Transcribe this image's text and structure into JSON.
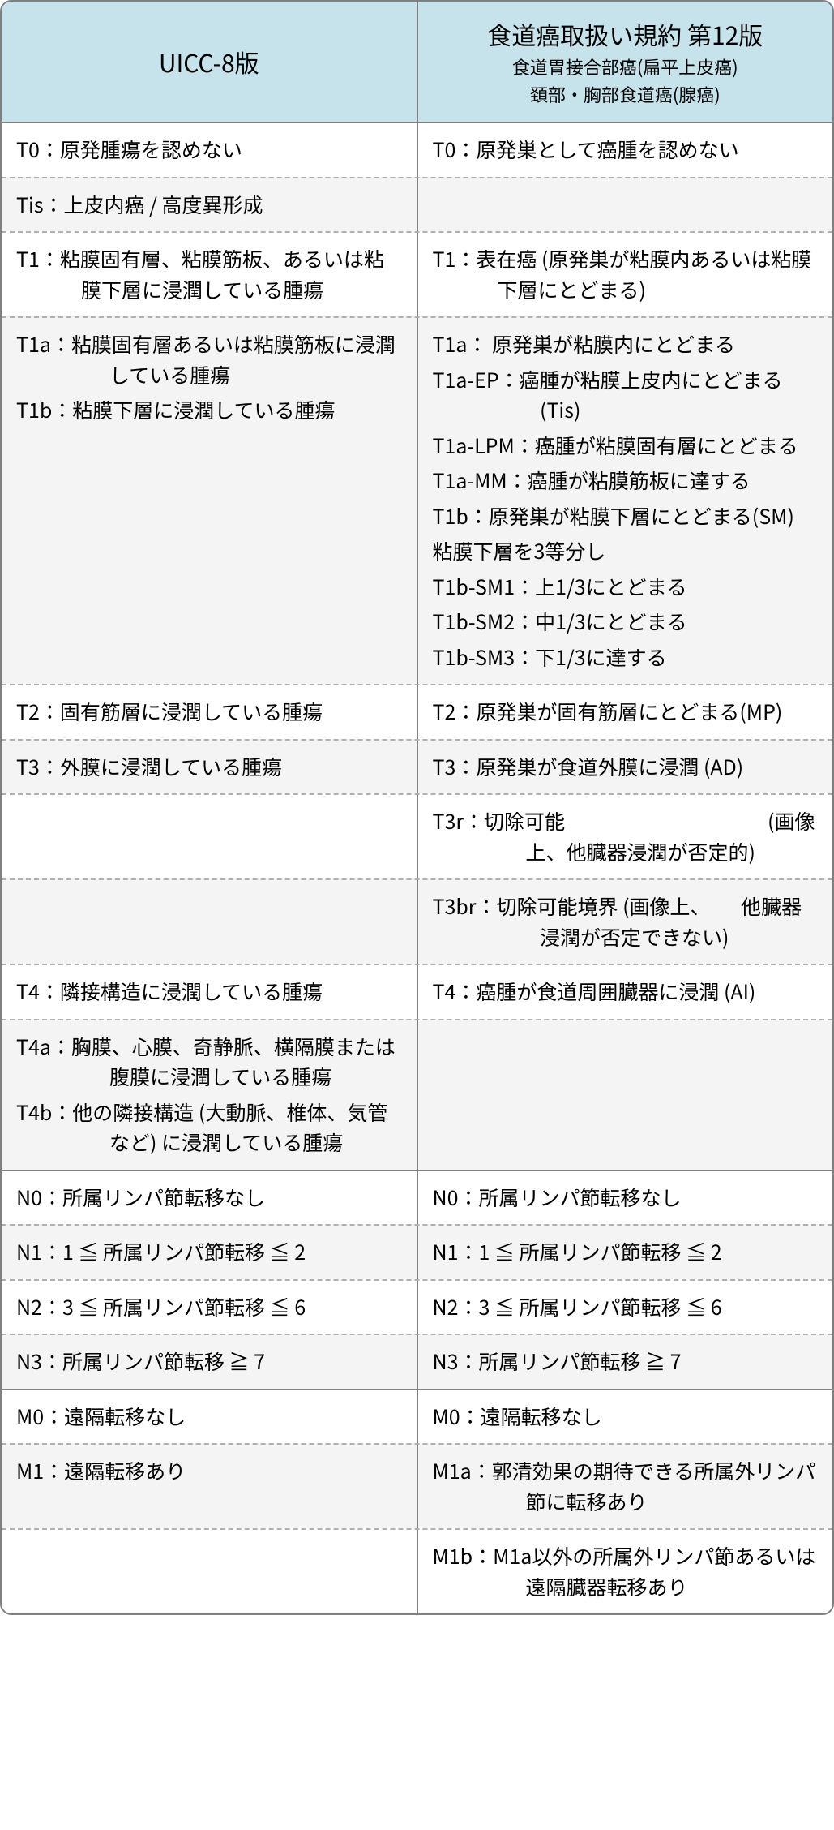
{
  "colors": {
    "header_bg": "#c6e3ec",
    "border": "#808080",
    "dash_border": "#b0b0b0",
    "alt_bg": "#f4f4f4",
    "bg": "#ffffff",
    "text": "#000000"
  },
  "fonts": {
    "header_title_pt": 30,
    "header_sub_pt": 22,
    "cell_pt": 25
  },
  "header": {
    "left": {
      "title": "UICC-8版"
    },
    "right": {
      "title": "食道癌取扱い規約 第12版",
      "sub1": "食道胃接合部癌(扁平上皮癌)",
      "sub2": "頚部・胸部食道癌(腺癌)"
    }
  },
  "sections": [
    {
      "rows": [
        {
          "alt": false,
          "left": [
            {
              "t": "T0：原発腫瘍を認めない",
              "cls": "hang"
            }
          ],
          "right": [
            {
              "t": "T0：原発巣として癌腫を認めない",
              "cls": "hang"
            }
          ]
        },
        {
          "alt": true,
          "left": [
            {
              "t": "Tis：上皮内癌 / 高度異形成",
              "cls": "hang"
            }
          ],
          "right": []
        },
        {
          "alt": false,
          "left": [
            {
              "t": "T1：粘膜固有層、粘膜筋板、あるいは粘膜下層に浸潤している腫瘍",
              "cls": "hang"
            }
          ],
          "right": [
            {
              "t": "T1：表在癌 (原発巣が粘膜内あるいは粘膜下層にとどまる)",
              "cls": "hang"
            }
          ]
        },
        {
          "alt": true,
          "left": [
            {
              "t": "T1a：粘膜固有層あるいは粘膜筋板に浸潤している腫瘍",
              "cls": "hang-s"
            },
            {
              "t": "T1b：粘膜下層に浸潤している腫瘍",
              "cls": "hang-s"
            }
          ],
          "right": [
            {
              "t": "T1a： 原発巣が粘膜内にとどまる",
              "cls": "hang-s"
            },
            {
              "t": "T1a-EP：癌腫が粘膜上皮内にとどまる(Tis)",
              "cls": "hang-m"
            },
            {
              "t": "T1a-LPM：癌腫が粘膜固有層にとどまる",
              "cls": "hang-l"
            },
            {
              "t": "T1a-MM：癌腫が粘膜筋板に達する",
              "cls": "hang-l"
            },
            {
              "t": "T1b：原発巣が粘膜下層にとどまる(SM)",
              "cls": "hang-s"
            },
            {
              "t": "粘膜下層を3等分し",
              "cls": "hang"
            },
            {
              "t": "T1b-SM1：上1/3にとどまる",
              "cls": "hang-l"
            },
            {
              "t": "T1b-SM2：中1/3にとどまる",
              "cls": "hang-l"
            },
            {
              "t": "T1b-SM3：下1/3に達する",
              "cls": "hang-l"
            }
          ]
        },
        {
          "alt": false,
          "left": [
            {
              "t": "T2：固有筋層に浸潤している腫瘍",
              "cls": "hang"
            }
          ],
          "right": [
            {
              "t": "T2：原発巣が固有筋層にとどまる(MP)",
              "cls": "hang"
            }
          ]
        },
        {
          "alt": true,
          "left": [
            {
              "t": "T3：外膜に浸潤している腫瘍",
              "cls": "hang"
            }
          ],
          "right": [
            {
              "t": "T3：原発巣が食道外膜に浸潤 (AD)",
              "cls": "hang"
            }
          ]
        },
        {
          "alt": false,
          "left": [],
          "right": [
            {
              "t": "T3r：切除可能　　　　　　　　　　(画像上、他臓器浸潤が否定的)",
              "cls": "hang-s"
            }
          ]
        },
        {
          "alt": true,
          "left": [],
          "right": [
            {
              "t": "T3br：切除可能境界 (画像上、　　他臓器浸潤が否定できない)",
              "cls": "hang-m"
            }
          ]
        },
        {
          "alt": false,
          "left": [
            {
              "t": "T4：隣接構造に浸潤している腫瘍",
              "cls": "hang"
            }
          ],
          "right": [
            {
              "t": "T4：癌腫が食道周囲臓器に浸潤 (AI)",
              "cls": "hang"
            }
          ]
        },
        {
          "alt": true,
          "left": [
            {
              "t": "T4a：胸膜、心膜、奇静脈、横隔膜または腹膜に浸潤している腫瘍",
              "cls": "hang-s"
            },
            {
              "t": "T4b：他の隣接構造 (大動脈、椎体、気管など) に浸潤している腫瘍",
              "cls": "hang-s"
            }
          ],
          "right": []
        }
      ]
    },
    {
      "rows": [
        {
          "alt": false,
          "left": [
            {
              "t": "N0：所属リンパ節転移なし",
              "cls": "hang"
            }
          ],
          "right": [
            {
              "t": "N0：所属リンパ節転移なし",
              "cls": "hang"
            }
          ]
        },
        {
          "alt": true,
          "left": [
            {
              "t": "N1：1 ≦ 所属リンパ節転移 ≦ 2",
              "cls": "hang"
            }
          ],
          "right": [
            {
              "t": "N1：1 ≦ 所属リンパ節転移 ≦ 2",
              "cls": "hang"
            }
          ]
        },
        {
          "alt": false,
          "left": [
            {
              "t": "N2：3 ≦ 所属リンパ節転移 ≦ 6",
              "cls": "hang"
            }
          ],
          "right": [
            {
              "t": "N2：3 ≦ 所属リンパ節転移 ≦ 6",
              "cls": "hang"
            }
          ]
        },
        {
          "alt": true,
          "left": [
            {
              "t": "N3：所属リンパ節転移 ≧ 7",
              "cls": "hang"
            }
          ],
          "right": [
            {
              "t": "N3：所属リンパ節転移 ≧ 7",
              "cls": "hang"
            }
          ]
        }
      ]
    },
    {
      "rows": [
        {
          "alt": false,
          "left": [
            {
              "t": "M0：遠隔転移なし",
              "cls": "hang"
            }
          ],
          "right": [
            {
              "t": "M0：遠隔転移なし",
              "cls": "hang"
            }
          ]
        },
        {
          "alt": true,
          "left": [
            {
              "t": "M1：遠隔転移あり",
              "cls": "hang"
            }
          ],
          "right": [
            {
              "t": "M1a：郭清効果の期待できる所属外リンパ節に転移あり",
              "cls": "hang-s"
            }
          ]
        },
        {
          "alt": false,
          "left": [],
          "right": [
            {
              "t": "M1b：M1a以外の所属外リンパ節あるいは遠隔臓器転移あり",
              "cls": "hang-s"
            }
          ]
        }
      ]
    }
  ]
}
